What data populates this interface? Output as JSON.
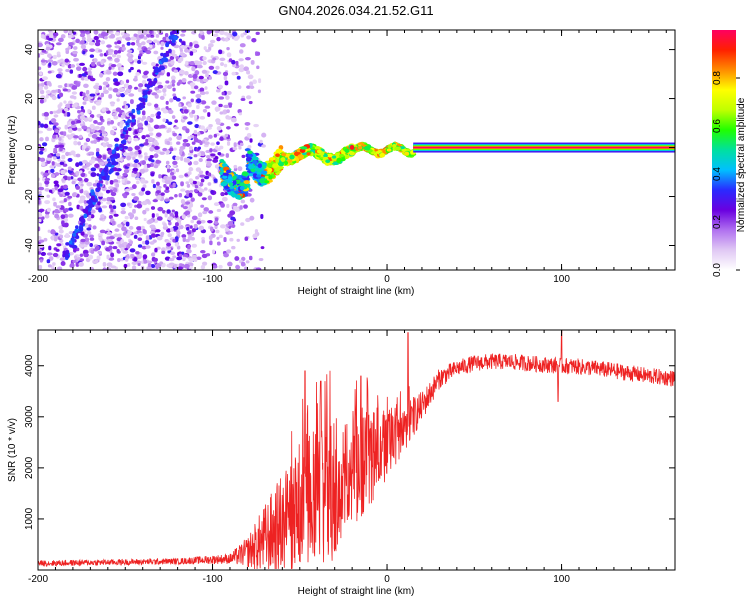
{
  "chart_data": [
    {
      "type": "heatmap",
      "title": "GN04.2026.034.21.52.G11",
      "xlabel": "Height of straight line (km)",
      "ylabel": "Frequency (Hz)",
      "xlim": [
        -200,
        165
      ],
      "ylim": [
        -50,
        48
      ],
      "xticks": [
        -200,
        -100,
        0,
        100
      ],
      "yticks": [
        -40,
        -20,
        0,
        20,
        40
      ],
      "colorbar": {
        "label": "Normalized spectral amplitude",
        "range": [
          0,
          1
        ],
        "ticks": [
          "0.0",
          "0.2",
          "0.4",
          "0.6",
          "0.8"
        ],
        "tick_values": [
          0,
          0.2,
          0.4,
          0.6,
          0.8
        ],
        "colors": [
          "#ffffff",
          "#e0c8f4",
          "#b070f0",
          "#6a00e0",
          "#2a2aff",
          "#00c0ff",
          "#00e0a0",
          "#20ff00",
          "#c0ff00",
          "#ffff00",
          "#ff8c00",
          "#ff2000",
          "#ff0060"
        ]
      },
      "features": {
        "noise_region_x": [
          -200,
          -70
        ],
        "diagonal_trace": {
          "x": [
            -185,
            -120
          ],
          "y": [
            -45,
            48
          ]
        },
        "carrier_start_x": -95,
        "steady_carrier_x": [
          15,
          165
        ],
        "carrier_frequency_hz": 0
      }
    },
    {
      "type": "line",
      "xlabel": "Height of straight line (km)",
      "ylabel": "SNR (10 * v/v)",
      "xlim": [
        -200,
        165
      ],
      "ylim": [
        0,
        4700
      ],
      "xticks": [
        -200,
        -100,
        0,
        100
      ],
      "yticks": [
        1000,
        2000,
        3000,
        4000
      ],
      "series": [
        {
          "name": "SNR",
          "color": "#ee2222",
          "envelope_x": [
            -200,
            -120,
            -90,
            -80,
            -70,
            -60,
            -50,
            -40,
            -30,
            -20,
            -10,
            0,
            10,
            20,
            30,
            40,
            50,
            60,
            70,
            80,
            90,
            100,
            110,
            120,
            130,
            140,
            150,
            165
          ],
          "envelope_y": [
            130,
            170,
            220,
            350,
            600,
            900,
            1200,
            1500,
            1700,
            2000,
            2200,
            2500,
            2800,
            3200,
            3750,
            3950,
            4050,
            4080,
            4080,
            4050,
            4020,
            4000,
            3980,
            3950,
            3900,
            3850,
            3800,
            3750
          ],
          "noise_y": [
            60,
            60,
            100,
            300,
            700,
            1000,
            1300,
            1500,
            1500,
            1200,
            1000,
            700,
            500,
            300,
            200,
            160,
            160,
            160,
            160,
            160,
            160,
            160,
            160,
            160,
            160,
            160,
            160,
            160
          ],
          "spikes": [
            {
              "x": -47,
              "y": 3900
            },
            {
              "x": -38,
              "y": 3700
            },
            {
              "x": -15,
              "y": 3800
            },
            {
              "x": 12,
              "y": 4650
            },
            {
              "x": 100,
              "y": 4700
            },
            {
              "x": 98,
              "y": 3300
            }
          ]
        }
      ]
    }
  ]
}
